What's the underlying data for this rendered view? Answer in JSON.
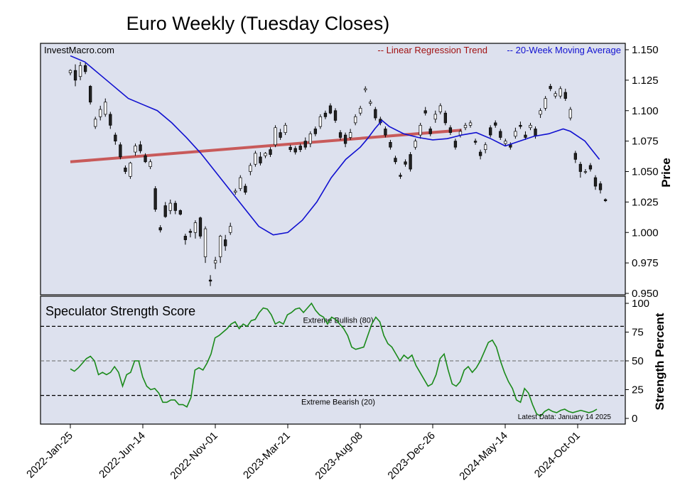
{
  "page": {
    "title": "Euro Weekly (Tuesday Closes)",
    "watermark": "InvestMacro.com",
    "latest_data": "Latest Data: January 14 2025"
  },
  "colors": {
    "panel_bg": "#dde1ee",
    "candle_up": "#ffffff",
    "candle_down": "#222222",
    "trend": "#c85a5a",
    "moving_average": "#1010d0",
    "score_line": "#1a8a1a",
    "regression_legend": "#a01010",
    "ma_legend": "#1010d0"
  },
  "chart_data": [
    {
      "type": "candlestick",
      "ylabel": "Price",
      "ylim": [
        0.95,
        1.15
      ],
      "yticks": [
        "1.150",
        "1.125",
        "1.100",
        "1.075",
        "1.050",
        "1.025",
        "1.000",
        "0.975",
        "0.950"
      ],
      "x_tick_labels": [
        "2022-Jan-25",
        "2022-Jun-14",
        "2022-Nov-01",
        "2023-Mar-21",
        "2023-Aug-08",
        "2023-Dec-26",
        "2024-May-14",
        "2024-Oct-01"
      ],
      "x_tick_weeks": [
        0,
        20,
        40,
        60,
        80,
        100,
        120,
        140
      ],
      "legend_position": "top-right",
      "series": [
        {
          "name": "-- Linear Regression Trend",
          "start": 1.058,
          "end": 1.084
        },
        {
          "name": "-- 20-Week Moving Average",
          "values": [
            1.145,
            1.14,
            1.13,
            1.12,
            1.11,
            1.105,
            1.1,
            1.09,
            1.078,
            1.065,
            1.05,
            1.035,
            1.02,
            1.005,
            0.998,
            1.0,
            1.01,
            1.025,
            1.045,
            1.06,
            1.07,
            1.077,
            1.085,
            1.092,
            1.087,
            1.081,
            1.078,
            1.076,
            1.077,
            1.08,
            1.082,
            1.077,
            1.071,
            1.075,
            1.079,
            1.081,
            1.085,
            1.083,
            1.075,
            1.06
          ],
          "x_weeks": [
            0,
            4,
            8,
            12,
            16,
            20,
            24,
            28,
            32,
            36,
            40,
            44,
            48,
            52,
            56,
            60,
            64,
            68,
            72,
            76,
            80,
            82,
            84,
            86,
            88,
            92,
            96,
            100,
            104,
            108,
            112,
            116,
            120,
            124,
            128,
            132,
            136,
            138,
            142,
            146
          ]
        }
      ],
      "candles": [
        {
          "o": 1.131,
          "c": 1.133,
          "h": 1.134,
          "l": 1.129
        },
        {
          "o": 1.133,
          "c": 1.125,
          "h": 1.138,
          "l": 1.12
        },
        {
          "o": 1.128,
          "c": 1.137,
          "h": 1.14,
          "l": 1.125
        },
        {
          "o": 1.137,
          "c": 1.132,
          "h": 1.139,
          "l": 1.13
        },
        {
          "o": 1.12,
          "c": 1.107,
          "h": 1.121,
          "l": 1.105
        },
        {
          "o": 1.087,
          "c": 1.093,
          "h": 1.095,
          "l": 1.085
        },
        {
          "o": 1.095,
          "c": 1.101,
          "h": 1.104,
          "l": 1.092
        },
        {
          "o": 1.097,
          "c": 1.107,
          "h": 1.11,
          "l": 1.095
        },
        {
          "o": 1.097,
          "c": 1.088,
          "h": 1.099,
          "l": 1.085
        },
        {
          "o": 1.08,
          "c": 1.075,
          "h": 1.082,
          "l": 1.072
        },
        {
          "o": 1.072,
          "c": 1.062,
          "h": 1.074,
          "l": 1.06
        },
        {
          "o": 1.053,
          "c": 1.05,
          "h": 1.055,
          "l": 1.048
        },
        {
          "o": 1.046,
          "c": 1.057,
          "h": 1.058,
          "l": 1.044
        },
        {
          "o": 1.066,
          "c": 1.071,
          "h": 1.073,
          "l": 1.063
        },
        {
          "o": 1.072,
          "c": 1.067,
          "h": 1.075,
          "l": 1.065
        },
        {
          "o": 1.063,
          "c": 1.058,
          "h": 1.065,
          "l": 1.057
        },
        {
          "o": 1.054,
          "c": 1.058,
          "h": 1.06,
          "l": 1.052
        },
        {
          "o": 1.036,
          "c": 1.019,
          "h": 1.038,
          "l": 1.017
        },
        {
          "o": 1.004,
          "c": 1.002,
          "h": 1.006,
          "l": 1.0
        },
        {
          "o": 1.022,
          "c": 1.013,
          "h": 1.025,
          "l": 1.012
        },
        {
          "o": 1.018,
          "c": 1.024,
          "h": 1.027,
          "l": 1.015
        },
        {
          "o": 1.024,
          "c": 1.018,
          "h": 1.026,
          "l": 1.015
        },
        {
          "o": 1.018,
          "c": 1.015,
          "h": 1.019,
          "l": 1.014
        },
        {
          "o": 0.997,
          "c": 0.994,
          "h": 0.999,
          "l": 0.99
        },
        {
          "o": 1.001,
          "c": 1.0,
          "h": 1.003,
          "l": 0.996
        },
        {
          "o": 1.0,
          "c": 1.008,
          "h": 1.01,
          "l": 0.995
        },
        {
          "o": 1.012,
          "c": 0.997,
          "h": 1.013,
          "l": 0.995
        },
        {
          "o": 0.98,
          "c": 1.003,
          "h": 1.005,
          "l": 0.975
        },
        {
          "o": 0.961,
          "c": 0.96,
          "h": 0.965,
          "l": 0.956
        },
        {
          "o": 0.975,
          "c": 0.977,
          "h": 0.98,
          "l": 0.97
        },
        {
          "o": 0.98,
          "c": 0.997,
          "h": 0.998,
          "l": 0.975
        },
        {
          "o": 0.994,
          "c": 0.989,
          "h": 0.998,
          "l": 0.985
        },
        {
          "o": 1.0,
          "c": 1.005,
          "h": 1.008,
          "l": 0.998
        },
        {
          "o": 1.033,
          "c": 1.034,
          "h": 1.036,
          "l": 1.031
        },
        {
          "o": 1.036,
          "c": 1.045,
          "h": 1.047,
          "l": 1.034
        },
        {
          "o": 1.038,
          "c": 1.033,
          "h": 1.04,
          "l": 1.031
        },
        {
          "o": 1.05,
          "c": 1.055,
          "h": 1.057,
          "l": 1.047
        },
        {
          "o": 1.056,
          "c": 1.065,
          "h": 1.067,
          "l": 1.054
        },
        {
          "o": 1.062,
          "c": 1.057,
          "h": 1.066,
          "l": 1.055
        },
        {
          "o": 1.063,
          "c": 1.065,
          "h": 1.066,
          "l": 1.061
        },
        {
          "o": 1.068,
          "c": 1.064,
          "h": 1.07,
          "l": 1.062
        },
        {
          "o": 1.072,
          "c": 1.086,
          "h": 1.088,
          "l": 1.07
        },
        {
          "o": 1.082,
          "c": 1.078,
          "h": 1.085,
          "l": 1.076
        },
        {
          "o": 1.082,
          "c": 1.088,
          "h": 1.09,
          "l": 1.08
        },
        {
          "o": 1.07,
          "c": 1.068,
          "h": 1.072,
          "l": 1.066
        },
        {
          "o": 1.069,
          "c": 1.066,
          "h": 1.071,
          "l": 1.064
        },
        {
          "o": 1.071,
          "c": 1.068,
          "h": 1.073,
          "l": 1.066
        },
        {
          "o": 1.075,
          "c": 1.07,
          "h": 1.078,
          "l": 1.068
        },
        {
          "o": 1.073,
          "c": 1.081,
          "h": 1.083,
          "l": 1.07
        },
        {
          "o": 1.085,
          "c": 1.081,
          "h": 1.087,
          "l": 1.079
        },
        {
          "o": 1.087,
          "c": 1.095,
          "h": 1.097,
          "l": 1.085
        },
        {
          "o": 1.098,
          "c": 1.095,
          "h": 1.1,
          "l": 1.093
        },
        {
          "o": 1.104,
          "c": 1.098,
          "h": 1.106,
          "l": 1.097
        },
        {
          "o": 1.1,
          "c": 1.092,
          "h": 1.102,
          "l": 1.09
        },
        {
          "o": 1.082,
          "c": 1.078,
          "h": 1.084,
          "l": 1.076
        },
        {
          "o": 1.08,
          "c": 1.073,
          "h": 1.082,
          "l": 1.07
        },
        {
          "o": 1.078,
          "c": 1.082,
          "h": 1.085,
          "l": 1.076
        },
        {
          "o": 1.09,
          "c": 1.095,
          "h": 1.097,
          "l": 1.088
        },
        {
          "o": 1.098,
          "c": 1.102,
          "h": 1.104,
          "l": 1.096
        },
        {
          "o": 1.117,
          "c": 1.118,
          "h": 1.12,
          "l": 1.115
        },
        {
          "o": 1.106,
          "c": 1.107,
          "h": 1.109,
          "l": 1.104
        },
        {
          "o": 1.101,
          "c": 1.094,
          "h": 1.103,
          "l": 1.092
        },
        {
          "o": 1.093,
          "c": 1.09,
          "h": 1.095,
          "l": 1.088
        },
        {
          "o": 1.085,
          "c": 1.08,
          "h": 1.087,
          "l": 1.078
        },
        {
          "o": 1.074,
          "c": 1.07,
          "h": 1.076,
          "l": 1.068
        },
        {
          "o": 1.061,
          "c": 1.058,
          "h": 1.063,
          "l": 1.056
        },
        {
          "o": 1.047,
          "c": 1.046,
          "h": 1.049,
          "l": 1.044
        },
        {
          "o": 1.058,
          "c": 1.056,
          "h": 1.06,
          "l": 1.054
        },
        {
          "o": 1.064,
          "c": 1.052,
          "h": 1.066,
          "l": 1.05
        },
        {
          "o": 1.07,
          "c": 1.075,
          "h": 1.077,
          "l": 1.068
        },
        {
          "o": 1.08,
          "c": 1.088,
          "h": 1.09,
          "l": 1.077
        },
        {
          "o": 1.1,
          "c": 1.098,
          "h": 1.103,
          "l": 1.096
        },
        {
          "o": 1.085,
          "c": 1.081,
          "h": 1.087,
          "l": 1.079
        },
        {
          "o": 1.093,
          "c": 1.097,
          "h": 1.1,
          "l": 1.09
        },
        {
          "o": 1.099,
          "c": 1.104,
          "h": 1.106,
          "l": 1.097
        },
        {
          "o": 1.098,
          "c": 1.09,
          "h": 1.1,
          "l": 1.088
        },
        {
          "o": 1.086,
          "c": 1.082,
          "h": 1.088,
          "l": 1.08
        },
        {
          "o": 1.075,
          "c": 1.07,
          "h": 1.077,
          "l": 1.068
        },
        {
          "o": 1.08,
          "c": 1.083,
          "h": 1.085,
          "l": 1.078
        },
        {
          "o": 1.086,
          "c": 1.088,
          "h": 1.09,
          "l": 1.084
        },
        {
          "o": 1.088,
          "c": 1.09,
          "h": 1.092,
          "l": 1.086
        },
        {
          "o": 1.075,
          "c": 1.074,
          "h": 1.077,
          "l": 1.072
        },
        {
          "o": 1.066,
          "c": 1.063,
          "h": 1.068,
          "l": 1.06
        },
        {
          "o": 1.068,
          "c": 1.072,
          "h": 1.074,
          "l": 1.065
        },
        {
          "o": 1.086,
          "c": 1.08,
          "h": 1.088,
          "l": 1.078
        },
        {
          "o": 1.09,
          "c": 1.088,
          "h": 1.092,
          "l": 1.086
        },
        {
          "o": 1.083,
          "c": 1.078,
          "h": 1.085,
          "l": 1.076
        },
        {
          "o": 1.073,
          "c": 1.075,
          "h": 1.077,
          "l": 1.071
        },
        {
          "o": 1.072,
          "c": 1.07,
          "h": 1.074,
          "l": 1.068
        },
        {
          "o": 1.079,
          "c": 1.083,
          "h": 1.086,
          "l": 1.077
        },
        {
          "o": 1.088,
          "c": 1.087,
          "h": 1.091,
          "l": 1.085
        },
        {
          "o": 1.08,
          "c": 1.078,
          "h": 1.083,
          "l": 1.076
        },
        {
          "o": 1.086,
          "c": 1.088,
          "h": 1.09,
          "l": 1.084
        },
        {
          "o": 1.085,
          "c": 1.079,
          "h": 1.087,
          "l": 1.077
        },
        {
          "o": 1.097,
          "c": 1.1,
          "h": 1.102,
          "l": 1.094
        },
        {
          "o": 1.102,
          "c": 1.11,
          "h": 1.112,
          "l": 1.1
        },
        {
          "o": 1.12,
          "c": 1.118,
          "h": 1.122,
          "l": 1.116
        },
        {
          "o": 1.112,
          "c": 1.114,
          "h": 1.116,
          "l": 1.11
        },
        {
          "o": 1.112,
          "c": 1.118,
          "h": 1.12,
          "l": 1.11
        },
        {
          "o": 1.115,
          "c": 1.11,
          "h": 1.118,
          "l": 1.108
        },
        {
          "o": 1.094,
          "c": 1.101,
          "h": 1.103,
          "l": 1.092
        },
        {
          "o": 1.065,
          "c": 1.06,
          "h": 1.067,
          "l": 1.057
        },
        {
          "o": 1.056,
          "c": 1.05,
          "h": 1.058,
          "l": 1.045
        },
        {
          "o": 1.05,
          "c": 1.05,
          "h": 1.052,
          "l": 1.048
        },
        {
          "o": 1.055,
          "c": 1.052,
          "h": 1.057,
          "l": 1.05
        },
        {
          "o": 1.045,
          "c": 1.038,
          "h": 1.047,
          "l": 1.035
        },
        {
          "o": 1.04,
          "c": 1.035,
          "h": 1.042,
          "l": 1.032
        },
        {
          "o": 1.027,
          "c": 1.026,
          "h": 1.028,
          "l": 1.025
        }
      ]
    },
    {
      "type": "line",
      "title": "Speculator Strength Score",
      "ylabel": "Strength Percent",
      "ylim": [
        0,
        100
      ],
      "yticks": [
        "100",
        "75",
        "50",
        "25",
        "0"
      ],
      "reference_lines": [
        {
          "value": 80,
          "label": "Extreme Bullish (80)"
        },
        {
          "value": 50,
          "label": ""
        },
        {
          "value": 20,
          "label": "Extreme Bearish (20)"
        }
      ],
      "values": [
        43,
        41,
        44,
        48,
        52,
        54,
        50,
        38,
        40,
        38,
        40,
        45,
        40,
        28,
        38,
        40,
        50,
        50,
        36,
        28,
        25,
        26,
        22,
        14,
        14,
        16,
        16,
        12,
        12,
        10,
        18,
        42,
        44,
        42,
        48,
        56,
        70,
        72,
        75,
        78,
        82,
        84,
        78,
        82,
        80,
        85,
        86,
        92,
        96,
        95,
        90,
        82,
        84,
        82,
        90,
        92,
        95,
        96,
        92,
        96,
        100,
        94,
        90,
        88,
        82,
        88,
        86,
        82,
        78,
        72,
        62,
        60,
        61,
        62,
        72,
        82,
        88,
        84,
        72,
        65,
        62,
        56,
        50,
        55,
        52,
        55,
        46,
        40,
        34,
        28,
        30,
        38,
        52,
        56,
        42,
        30,
        28,
        32,
        42,
        45,
        40,
        44,
        50,
        58,
        66,
        68,
        62,
        50,
        40,
        32,
        26,
        16,
        14,
        26,
        22,
        12,
        4,
        2,
        6,
        8,
        6,
        5,
        7,
        8,
        6,
        5,
        6,
        7,
        6,
        5,
        6,
        8
      ]
    }
  ]
}
